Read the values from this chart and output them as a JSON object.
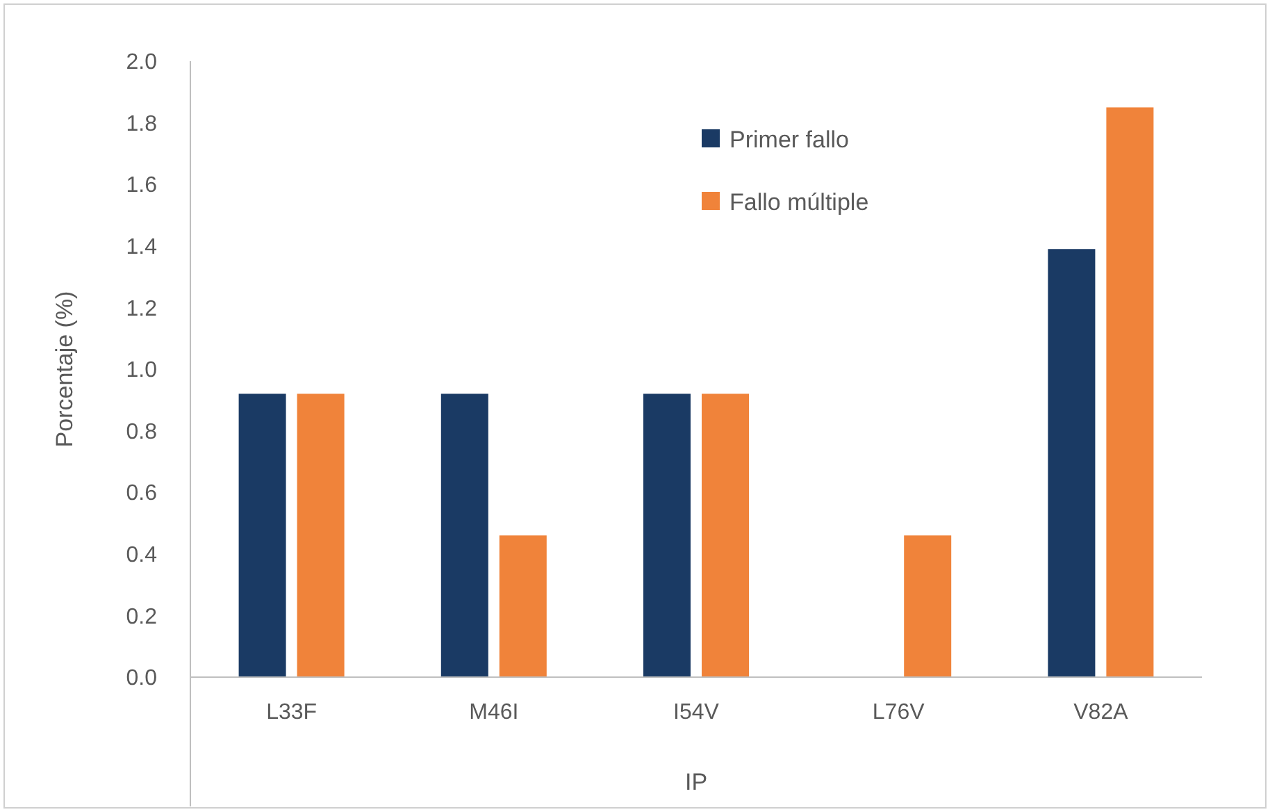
{
  "chart_data": {
    "type": "bar",
    "xlabel": "IP",
    "ylabel": "Porcentaje (%)",
    "categories": [
      "L33F",
      "M46I",
      "I54V",
      "L76V",
      "V82A"
    ],
    "series": [
      {
        "name": "Primer fallo",
        "color": "#1a3a64",
        "values": [
          0.92,
          0.92,
          0.92,
          0,
          1.39
        ]
      },
      {
        "name": "Fallo múltiple",
        "color": "#f0833a",
        "values": [
          0.92,
          0.46,
          0.92,
          0.46,
          1.85
        ]
      }
    ],
    "ylim": [
      0,
      2
    ],
    "yticks": [
      {
        "value": 0,
        "label": "0.0"
      },
      {
        "value": 0.2,
        "label": "0.2"
      },
      {
        "value": 0.4,
        "label": "0.4"
      },
      {
        "value": 0.6,
        "label": "0.6"
      },
      {
        "value": 0.8,
        "label": "0.8"
      },
      {
        "value": 1,
        "label": "1.0"
      },
      {
        "value": 1.2,
        "label": "1.2"
      },
      {
        "value": 1.4,
        "label": "1.4"
      },
      {
        "value": 1.6,
        "label": "1.6"
      },
      {
        "value": 1.8,
        "label": "1.8"
      },
      {
        "value": 2,
        "label": "2.0"
      }
    ],
    "grid": false,
    "legend": "top"
  }
}
